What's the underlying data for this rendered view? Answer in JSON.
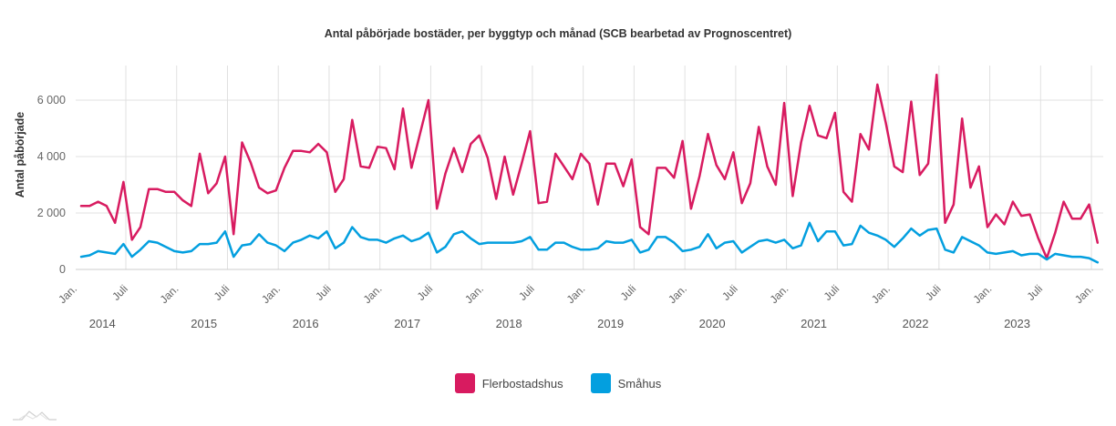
{
  "chart_data": {
    "type": "line",
    "title": "Antal påbörjade bostäder, per byggtyp och månad (SCB bearbetad av Prognoscentret)",
    "xlabel": "",
    "ylabel": "Antal påbörjade",
    "ylim": [
      0,
      7000
    ],
    "yticks": [
      0,
      2000,
      4000,
      6000
    ],
    "ytick_labels": [
      "0",
      "2 000",
      "4 000",
      "6 000"
    ],
    "grid": true,
    "x_start": "2014-01",
    "x_end": "2024-01",
    "x_frequency": "monthly",
    "xtick_labels": [
      "Jan.",
      "Juli",
      "Jan.",
      "Juli",
      "Jan.",
      "Juli",
      "Jan.",
      "Juli",
      "Jan.",
      "Juli",
      "Jan.",
      "Juli",
      "Jan.",
      "Juli",
      "Jan.",
      "Juli",
      "Jan.",
      "Juli",
      "Jan.",
      "Juli",
      "Jan."
    ],
    "xtick_month_index": [
      0,
      6,
      12,
      18,
      24,
      30,
      36,
      42,
      48,
      54,
      60,
      66,
      72,
      78,
      84,
      90,
      96,
      102,
      108,
      114,
      120
    ],
    "year_labels": [
      "2014",
      "2015",
      "2016",
      "2017",
      "2018",
      "2019",
      "2020",
      "2021",
      "2022",
      "2023"
    ],
    "legend_position": "bottom-center",
    "series": [
      {
        "name": "Flerbostadshus",
        "color": "#d81b60",
        "values": [
          2250,
          2250,
          2400,
          2250,
          1650,
          3100,
          1050,
          1500,
          2850,
          2850,
          2750,
          2750,
          2450,
          2250,
          4100,
          2700,
          3050,
          4000,
          1250,
          4500,
          3800,
          2900,
          2700,
          2800,
          3600,
          4200,
          4200,
          4150,
          4450,
          4150,
          2750,
          3200,
          5300,
          3650,
          3600,
          4350,
          4300,
          3550,
          5700,
          3600,
          4800,
          6000,
          2150,
          3400,
          4300,
          3450,
          4450,
          4750,
          3950,
          2500,
          4000,
          2650,
          3750,
          4900,
          2350,
          2400,
          4100,
          3650,
          3200,
          4100,
          3750,
          2300,
          3750,
          3750,
          2950,
          3900,
          1500,
          1250,
          3600,
          3600,
          3250,
          4550,
          2150,
          3300,
          4800,
          3700,
          3200,
          4150,
          2350,
          3050,
          5050,
          3650,
          3000,
          5900,
          2600,
          4500,
          5800,
          4750,
          4650,
          5550,
          2750,
          2400,
          4800,
          4250,
          6550,
          5200,
          3650,
          3450,
          5950,
          3350,
          3750,
          6900,
          1650,
          2300,
          5350,
          2900,
          3650,
          1500,
          1950,
          1600,
          2400,
          1900,
          1950,
          1100,
          400,
          1300,
          2400,
          1800,
          1800,
          2300,
          950
        ]
      },
      {
        "name": "Småhus",
        "color": "#039fdf",
        "values": [
          450,
          500,
          650,
          600,
          550,
          900,
          450,
          700,
          1000,
          950,
          800,
          650,
          600,
          650,
          900,
          900,
          950,
          1350,
          450,
          850,
          900,
          1250,
          950,
          850,
          650,
          950,
          1050,
          1200,
          1100,
          1350,
          750,
          950,
          1500,
          1150,
          1050,
          1050,
          950,
          1100,
          1200,
          1000,
          1100,
          1300,
          600,
          800,
          1250,
          1350,
          1100,
          900,
          950,
          950,
          950,
          950,
          1000,
          1150,
          700,
          700,
          950,
          950,
          800,
          700,
          700,
          750,
          1000,
          950,
          950,
          1050,
          600,
          700,
          1150,
          1150,
          950,
          650,
          700,
          800,
          1250,
          750,
          950,
          1000,
          600,
          800,
          1000,
          1050,
          950,
          1050,
          750,
          850,
          1650,
          1000,
          1350,
          1350,
          850,
          900,
          1550,
          1300,
          1200,
          1050,
          800,
          1100,
          1450,
          1200,
          1400,
          1450,
          700,
          600,
          1150,
          1000,
          850,
          600,
          550,
          600,
          650,
          500,
          550,
          550,
          350,
          550,
          500,
          450,
          450,
          400,
          250
        ]
      }
    ]
  },
  "legend": {
    "items": [
      {
        "label": "Flerbostadshus",
        "color": "#d81b60"
      },
      {
        "label": "Småhus",
        "color": "#039fdf"
      }
    ]
  },
  "logo": {
    "icon": "mountain-logo-icon"
  }
}
